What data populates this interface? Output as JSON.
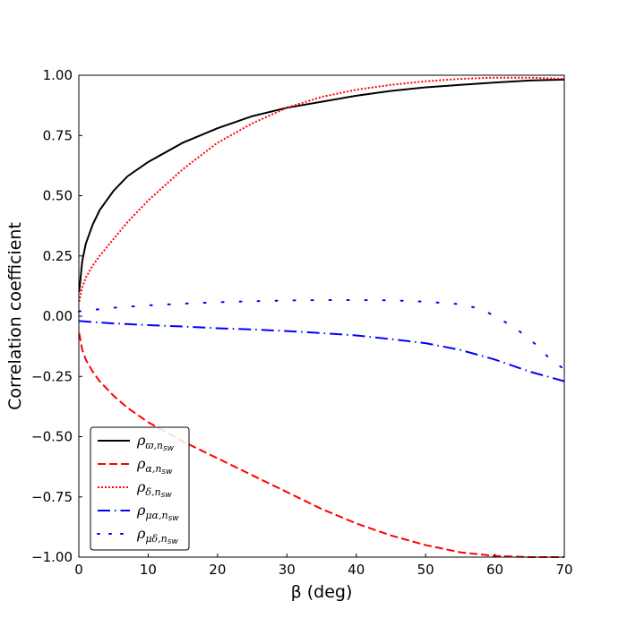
{
  "chart_data": {
    "type": "line",
    "title": "",
    "xlabel": "β (deg)",
    "ylabel": "Correlation coefficient",
    "xlim": [
      0,
      70
    ],
    "ylim": [
      -1.0,
      1.0
    ],
    "x_ticks": [
      "0",
      "10",
      "20",
      "30",
      "40",
      "50",
      "60",
      "70"
    ],
    "y_ticks": [
      "1.00",
      "0.75",
      "0.50",
      "0.25",
      "0.00",
      "−0.25",
      "−0.50",
      "−0.75",
      "−1.00"
    ],
    "grid": false,
    "legend_position": "bottom-left",
    "series": [
      {
        "name": "ρϖ,nsw",
        "label_main": "ρ",
        "label_sub": "ϖ,n",
        "label_subsub": "sw",
        "color": "#000000",
        "style": "solid",
        "x": [
          0.05,
          0.5,
          1,
          2,
          3,
          5,
          7,
          10,
          15,
          20,
          25,
          30,
          35,
          40,
          45,
          50,
          55,
          60,
          65,
          70
        ],
        "y": [
          0.1,
          0.23,
          0.3,
          0.38,
          0.44,
          0.52,
          0.58,
          0.64,
          0.72,
          0.78,
          0.83,
          0.865,
          0.89,
          0.915,
          0.935,
          0.95,
          0.96,
          0.97,
          0.978,
          0.982
        ]
      },
      {
        "name": "ρα,nsw",
        "label_main": "ρ",
        "label_sub": "α,n",
        "label_subsub": "sw",
        "color": "#ff0000",
        "style": "dashed",
        "x": [
          0.05,
          0.5,
          1,
          2,
          3,
          5,
          7,
          10,
          15,
          20,
          25,
          30,
          35,
          40,
          45,
          50,
          55,
          60,
          65,
          70
        ],
        "y": [
          -0.07,
          -0.14,
          -0.18,
          -0.23,
          -0.27,
          -0.33,
          -0.38,
          -0.44,
          -0.52,
          -0.59,
          -0.66,
          -0.73,
          -0.8,
          -0.86,
          -0.91,
          -0.95,
          -0.98,
          -0.995,
          -1.0,
          -1.0
        ]
      },
      {
        "name": "ρδ,nsw",
        "label_main": "ρ",
        "label_sub": "δ,n",
        "label_subsub": "sw",
        "color": "#ff0000",
        "style": "dotted",
        "x": [
          0.05,
          0.5,
          1,
          2,
          3,
          5,
          7,
          10,
          15,
          20,
          25,
          30,
          35,
          40,
          45,
          50,
          55,
          60,
          65,
          70
        ],
        "y": [
          0.06,
          0.12,
          0.16,
          0.21,
          0.25,
          0.32,
          0.39,
          0.48,
          0.61,
          0.72,
          0.8,
          0.865,
          0.91,
          0.94,
          0.96,
          0.975,
          0.985,
          0.99,
          0.99,
          0.985
        ]
      },
      {
        "name": "ρμα,nsw",
        "label_main": "ρ",
        "label_sub": "μα,n",
        "label_subsub": "sw",
        "color": "#0000ff",
        "style": "dashdot",
        "x": [
          0,
          5,
          10,
          15,
          20,
          25,
          30,
          35,
          40,
          45,
          50,
          55,
          60,
          65,
          70
        ],
        "y": [
          -0.02,
          -0.03,
          -0.037,
          -0.043,
          -0.05,
          -0.055,
          -0.062,
          -0.07,
          -0.08,
          -0.095,
          -0.112,
          -0.14,
          -0.18,
          -0.23,
          -0.27
        ]
      },
      {
        "name": "ρμδ,nsw",
        "label_main": "ρ",
        "label_sub": "μδ,n",
        "label_subsub": "sw",
        "color": "#0000ff",
        "style": "loosely-dotted",
        "x": [
          0,
          5,
          10,
          15,
          20,
          25,
          30,
          35,
          40,
          45,
          50,
          55,
          58,
          60,
          63,
          66,
          68,
          70
        ],
        "y": [
          0.02,
          0.035,
          0.045,
          0.052,
          0.058,
          0.062,
          0.065,
          0.067,
          0.067,
          0.066,
          0.06,
          0.05,
          0.03,
          0.0,
          -0.05,
          -0.12,
          -0.18,
          -0.22
        ]
      }
    ]
  }
}
